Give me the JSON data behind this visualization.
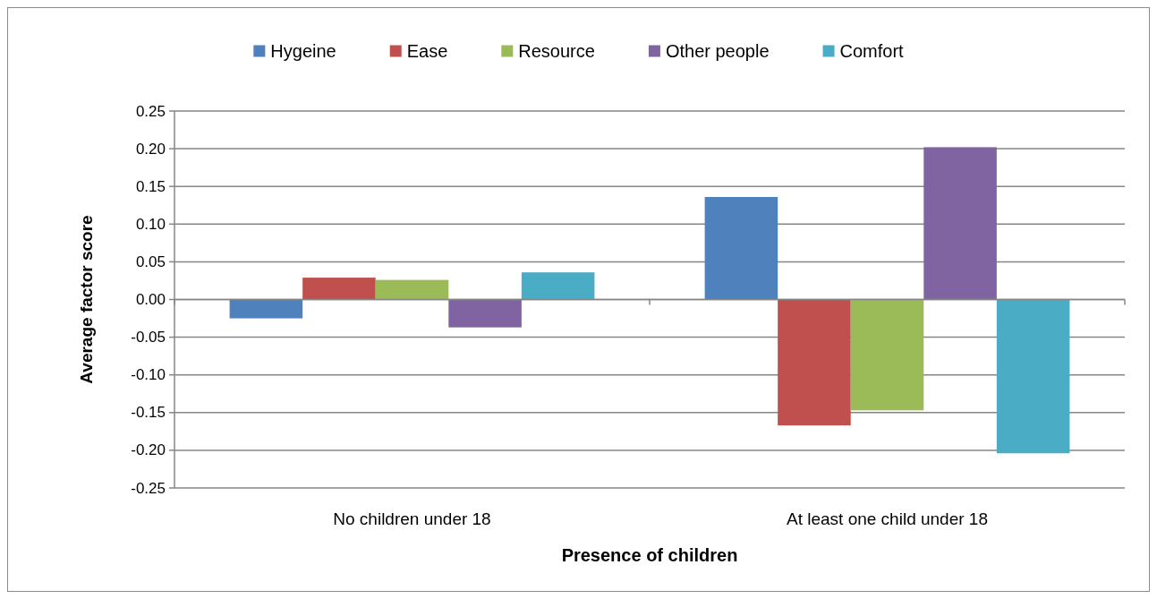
{
  "chart_data": {
    "type": "bar",
    "xlabel": "Presence of children",
    "ylabel": "Average factor score",
    "categories": [
      "No children under 18",
      "At least one child under 18"
    ],
    "series": [
      {
        "name": "Hygeine",
        "color": "#4f81bd",
        "values": [
          -0.025,
          0.136
        ]
      },
      {
        "name": "Ease",
        "color": "#c0504d",
        "values": [
          0.029,
          -0.167
        ]
      },
      {
        "name": "Resource",
        "color": "#9bbb59",
        "values": [
          0.026,
          -0.147
        ]
      },
      {
        "name": "Other people",
        "color": "#8064a2",
        "values": [
          -0.037,
          0.202
        ]
      },
      {
        "name": "Comfort",
        "color": "#4bacc6",
        "values": [
          0.036,
          -0.204
        ]
      }
    ],
    "ylim": [
      -0.25,
      0.25
    ],
    "yticks": [
      -0.25,
      {
        "value": -0.2,
        "label": "-0.20"
      },
      -0.15,
      {
        "value": -0.1,
        "label": "-0.10"
      },
      -0.05,
      {
        "value": 0,
        "label": "0.00"
      },
      0.05,
      {
        "value": 0.1,
        "label": "0.10"
      },
      0.15,
      {
        "value": 0.2,
        "label": "0.20"
      },
      0.25
    ],
    "grid": "y",
    "legend": "top"
  }
}
